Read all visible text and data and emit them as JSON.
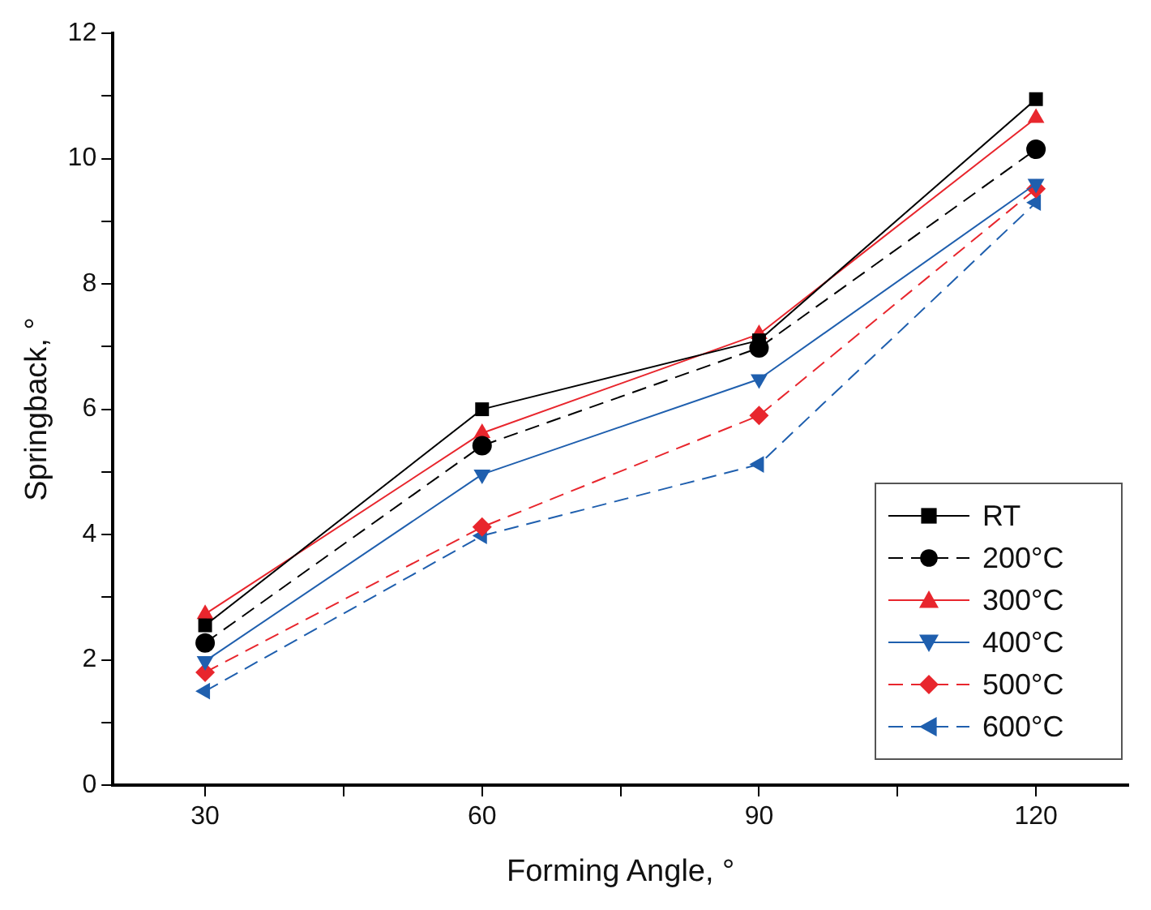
{
  "chart_data": {
    "type": "line",
    "xlabel": "Forming Angle, °",
    "ylabel": "Springback, °",
    "x": [
      30,
      60,
      90,
      120
    ],
    "xlim": [
      20,
      130
    ],
    "xticks": [
      30,
      {
        "value": 45,
        "label": null
      },
      60,
      {
        "value": 75,
        "label": null
      },
      90,
      {
        "value": 105,
        "label": null
      },
      120
    ],
    "ylim": [
      0,
      12
    ],
    "yticks": [
      0,
      {
        "value": 1,
        "label": null
      },
      2,
      {
        "value": 3,
        "label": null
      },
      4,
      {
        "value": 5,
        "label": null
      },
      6,
      {
        "value": 7,
        "label": null
      },
      8,
      {
        "value": 9,
        "label": null
      },
      10,
      {
        "value": 11,
        "label": null
      },
      12
    ],
    "grid": false,
    "legend": "bottom right",
    "series": [
      {
        "name": "RT",
        "color": "#000000",
        "marker": "square",
        "line_style": "solid",
        "values": [
          2.55,
          6.0,
          7.1,
          10.95
        ]
      },
      {
        "name": "200°C",
        "color": "#000000",
        "marker": "circle",
        "line_style": "dashed",
        "values": [
          2.27,
          5.42,
          6.98,
          10.15
        ]
      },
      {
        "name": "300°C",
        "color": "#e8262d",
        "marker": "triangle",
        "line_style": "solid",
        "values": [
          2.73,
          5.62,
          7.2,
          10.65
        ]
      },
      {
        "name": "400°C",
        "color": "#1f5fae",
        "marker": "triangle-down",
        "line_style": "solid",
        "values": [
          1.98,
          4.96,
          6.48,
          9.6
        ]
      },
      {
        "name": "500°C",
        "color": "#e8262d",
        "marker": "diamond",
        "line_style": "dashed",
        "values": [
          1.8,
          4.12,
          5.9,
          9.52
        ]
      },
      {
        "name": "600°C",
        "color": "#1f5fae",
        "marker": "triangle-left",
        "line_style": "dashed",
        "values": [
          1.5,
          3.98,
          5.12,
          9.3
        ]
      }
    ]
  }
}
